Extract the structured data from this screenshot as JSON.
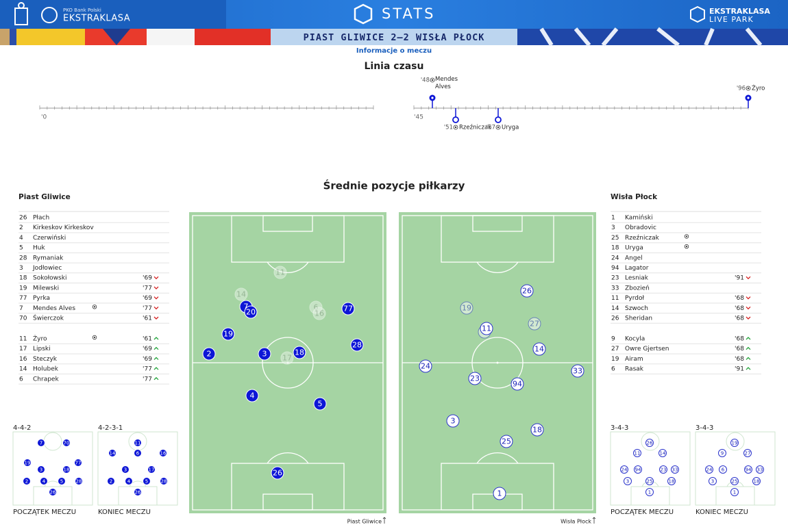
{
  "header": {
    "brand_top": "PKO Bank Polski",
    "brand": "EKSTRAKLASA",
    "stats": "STATS",
    "livepark_1": "EKSTRAKLASA",
    "livepark_2": "LIVE PARK"
  },
  "match": {
    "title": "PIAST GLIWICE 2–2 WISŁA PŁOCK",
    "subtitle": "Informacje o meczu"
  },
  "timeline": {
    "title": "Linia czasu",
    "half1": "'0",
    "half2": "'45",
    "events": [
      {
        "minute": "'48",
        "player": "Mendes Alves"
      },
      {
        "minute": "'51",
        "player": "Rzeźniczak"
      },
      {
        "minute": "'67",
        "player": "Uryga"
      },
      {
        "minute": "'96",
        "player": "Żyro"
      }
    ]
  },
  "positions": {
    "title": "Średnie pozycje piłkarzy"
  },
  "home": {
    "name": "Piast Gliwice",
    "starters": [
      {
        "number": "26",
        "name": "Płach"
      },
      {
        "number": "2",
        "name": "Kirkeskov Kirkeskov"
      },
      {
        "number": "4",
        "name": "Czerwiński"
      },
      {
        "number": "5",
        "name": "Huk"
      },
      {
        "number": "28",
        "name": "Rymaniak"
      },
      {
        "number": "3",
        "name": "Jodłowiec"
      },
      {
        "number": "18",
        "name": "Sokołowski",
        "minute": "'69"
      },
      {
        "number": "19",
        "name": "Milewski",
        "minute": "'77"
      },
      {
        "number": "77",
        "name": "Pyrka",
        "minute": "'69"
      },
      {
        "number": "7",
        "name": "Mendes Alves",
        "minute": "'77",
        "goal": true
      },
      {
        "number": "70",
        "name": "Świerczok",
        "minute": "'61"
      }
    ],
    "subs": [
      {
        "number": "11",
        "name": "Żyro",
        "minute": "'61",
        "goal": true
      },
      {
        "number": "17",
        "name": "Lipski",
        "minute": "'69"
      },
      {
        "number": "16",
        "name": "Steczyk",
        "minute": "'69"
      },
      {
        "number": "14",
        "name": "Holubek",
        "minute": "'77"
      },
      {
        "number": "6",
        "name": "Chrapek",
        "minute": "'77"
      }
    ],
    "pitch": [
      {
        "number": "11",
        "substitute": true
      },
      {
        "number": "14",
        "substitute": true
      },
      {
        "number": "7"
      },
      {
        "number": "20"
      },
      {
        "number": "6",
        "substitute": true
      },
      {
        "number": "16",
        "substitute": true
      },
      {
        "number": "77"
      },
      {
        "number": "19"
      },
      {
        "number": "2"
      },
      {
        "number": "3"
      },
      {
        "number": "18"
      },
      {
        "number": "17",
        "substitute": true
      },
      {
        "number": "28"
      },
      {
        "number": "4"
      },
      {
        "number": "5"
      },
      {
        "number": "26"
      }
    ],
    "pitch_label": "Piast Gliwice",
    "formation_start": {
      "name": "4-4-2",
      "label": "POCZĄTEK MECZU",
      "players": [
        "7",
        "70",
        "19",
        "77",
        "3",
        "18",
        "2",
        "4",
        "5",
        "28",
        "26"
      ]
    },
    "formation_end": {
      "name": "4-2-3-1",
      "label": "KONIEC MECZU",
      "players": [
        "11",
        "14",
        "6",
        "16",
        "3",
        "17",
        "2",
        "4",
        "5",
        "28",
        "26"
      ]
    }
  },
  "away": {
    "name": "Wisła Płock",
    "starters": [
      {
        "number": "1",
        "name": "Kamiński"
      },
      {
        "number": "3",
        "name": "Obradovic"
      },
      {
        "number": "25",
        "name": "Rzeźniczak",
        "goal": true
      },
      {
        "number": "18",
        "name": "Uryga",
        "goal": true
      },
      {
        "number": "24",
        "name": "Angel"
      },
      {
        "number": "94",
        "name": "Lagator"
      },
      {
        "number": "23",
        "name": "Lesniak",
        "minute": "'91"
      },
      {
        "number": "33",
        "name": "Zbozień"
      },
      {
        "number": "11",
        "name": "Pyrdoł",
        "minute": "'68"
      },
      {
        "number": "14",
        "name": "Szwoch",
        "minute": "'68"
      },
      {
        "number": "26",
        "name": "Sheridan",
        "minute": "'68"
      }
    ],
    "subs": [
      {
        "number": "9",
        "name": "Kocyla",
        "minute": "'68"
      },
      {
        "number": "27",
        "name": "Owre Gjertsen",
        "minute": "'68"
      },
      {
        "number": "19",
        "name": "Airam",
        "minute": "'68"
      },
      {
        "number": "6",
        "name": "Rasak",
        "minute": "'91"
      }
    ],
    "pitch": [
      {
        "number": "26"
      },
      {
        "number": "19",
        "substitute": true
      },
      {
        "number": "27",
        "substitute": true
      },
      {
        "number": "9",
        "substitute": true
      },
      {
        "number": "11"
      },
      {
        "number": "14"
      },
      {
        "number": "24"
      },
      {
        "number": "23"
      },
      {
        "number": "94"
      },
      {
        "number": "33"
      },
      {
        "number": "3"
      },
      {
        "number": "18"
      },
      {
        "number": "25"
      },
      {
        "number": "1"
      }
    ],
    "pitch_label": "Wisła Płock",
    "formation_start": {
      "name": "3-4-3",
      "label": "POCZĄTEK MECZU",
      "players": [
        "26",
        "11",
        "14",
        "24",
        "94",
        "23",
        "33",
        "3",
        "25",
        "18",
        "1"
      ]
    },
    "formation_end": {
      "name": "3-4-3",
      "label": "KONIEC MECZU",
      "players": [
        "19",
        "9",
        "27",
        "24",
        "6",
        "94",
        "33",
        "3",
        "25",
        "18",
        "1"
      ]
    }
  }
}
